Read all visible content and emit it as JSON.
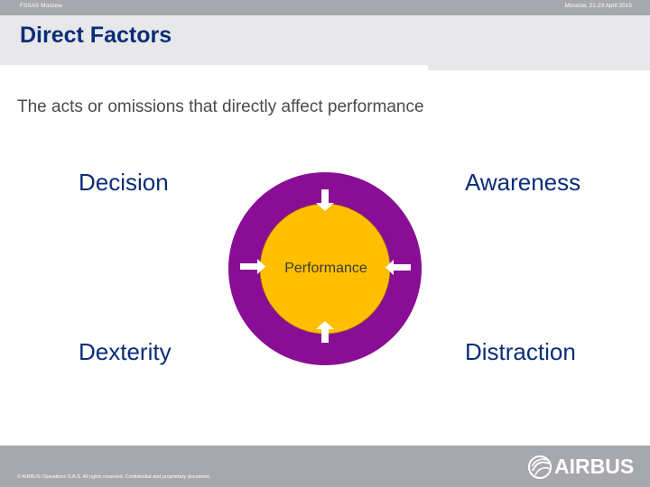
{
  "header": {
    "left_text": "FSSAS Moscow",
    "right_text": "Moscow, 21-23 April 2015"
  },
  "title": "Direct Factors",
  "subtitle": "The acts or omissions that directly affect performance",
  "factors": {
    "top_left": "Decision",
    "top_right": "Awareness",
    "bottom_left": "Dexterity",
    "bottom_right": "Distraction"
  },
  "center_label": "Performance",
  "footer": {
    "copyright": "© AIRBUS Operations S.A.S. All rights reserved. Confidential and proprietary document.",
    "logo_text": "AIRBUS"
  },
  "colors": {
    "outer_ring": "#8a0d95",
    "inner_circle": "#ffbf00",
    "title": "#0a2d78",
    "bars": "#a7a8ad",
    "title_band": "#e8e8ea"
  }
}
